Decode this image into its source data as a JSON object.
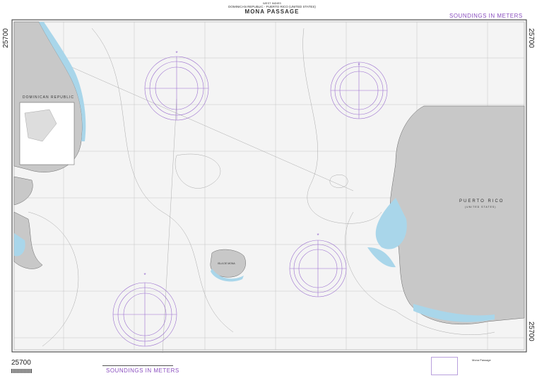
{
  "title_block": {
    "region": "WEST INDIES",
    "countries": "DOMINICAN REPUBLIC - PUERTO RICO (UNITED STATES)",
    "title": "MONA PASSAGE"
  },
  "soundings_label_top": "SOUNDINGS IN METERS",
  "soundings_label_bottom": "SOUNDINGS IN METERS",
  "chart_number": "25700",
  "land_labels": {
    "dominican_republic": "DOMINICAN REPUBLIC",
    "puerto_rico": "PUERTO RICO",
    "puerto_rico_sub": "(UNITED STATES)",
    "isla_de_mona": "ISLA DE MONA"
  },
  "footer_title": "Mona Passage",
  "colors": {
    "water": "#f4f4f4",
    "land": "#c8c8c8",
    "shallow": "#a9d6ea",
    "compass": "#9b6fcf",
    "accent": "#8a4fbf"
  }
}
